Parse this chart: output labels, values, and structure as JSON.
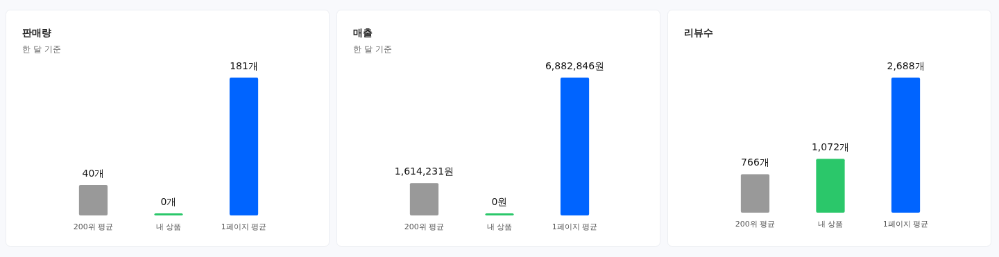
{
  "chart_data": [
    {
      "type": "bar",
      "title": "판매량",
      "subtitle": "한 달 기준",
      "categories": [
        "200위 평균",
        "내 상품",
        "1페이지 평균"
      ],
      "values": [
        40,
        0,
        181
      ],
      "colors": [
        "#999999",
        "#2bc76a",
        "#0064ff"
      ],
      "value_labels": [
        "40개",
        "0개",
        "181개"
      ]
    },
    {
      "type": "bar",
      "title": "매출",
      "subtitle": "한 달 기준",
      "categories": [
        "200위 평균",
        "내 상품",
        "1페이지 평균"
      ],
      "values": [
        1614231,
        0,
        6882846
      ],
      "colors": [
        "#999999",
        "#2bc76a",
        "#0064ff"
      ],
      "value_labels": [
        "1,614,231원",
        "0원",
        "6,882,846원"
      ]
    },
    {
      "type": "bar",
      "title": "리뷰수",
      "categories": [
        "200위 평균",
        "내 상품",
        "1페이지 평균"
      ],
      "values": [
        766,
        1072,
        2688
      ],
      "colors": [
        "#999999",
        "#2bc76a",
        "#0064ff"
      ],
      "value_labels": [
        "766개",
        "1,072개",
        "2,688개"
      ]
    }
  ]
}
